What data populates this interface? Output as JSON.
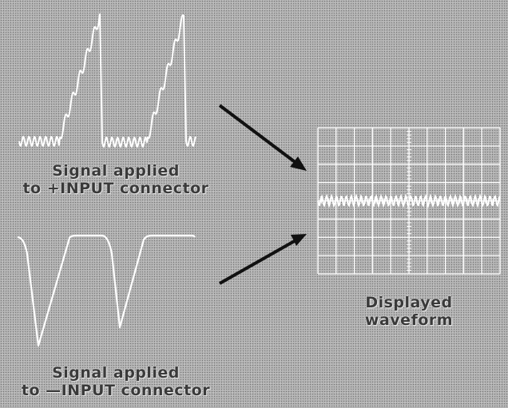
{
  "captions": {
    "plus_input": {
      "line1": "Signal applied",
      "line2": "to +INPUT connector"
    },
    "minus_input": {
      "line1": "Signal applied",
      "line2": "to —INPUT connector"
    },
    "displayed": {
      "line1": "Displayed",
      "line2": "waveform"
    }
  },
  "colors": {
    "trace": "#ffffff",
    "arrow": "#111111",
    "graticule": "#ffffff",
    "background": "#b5b5b5"
  }
}
